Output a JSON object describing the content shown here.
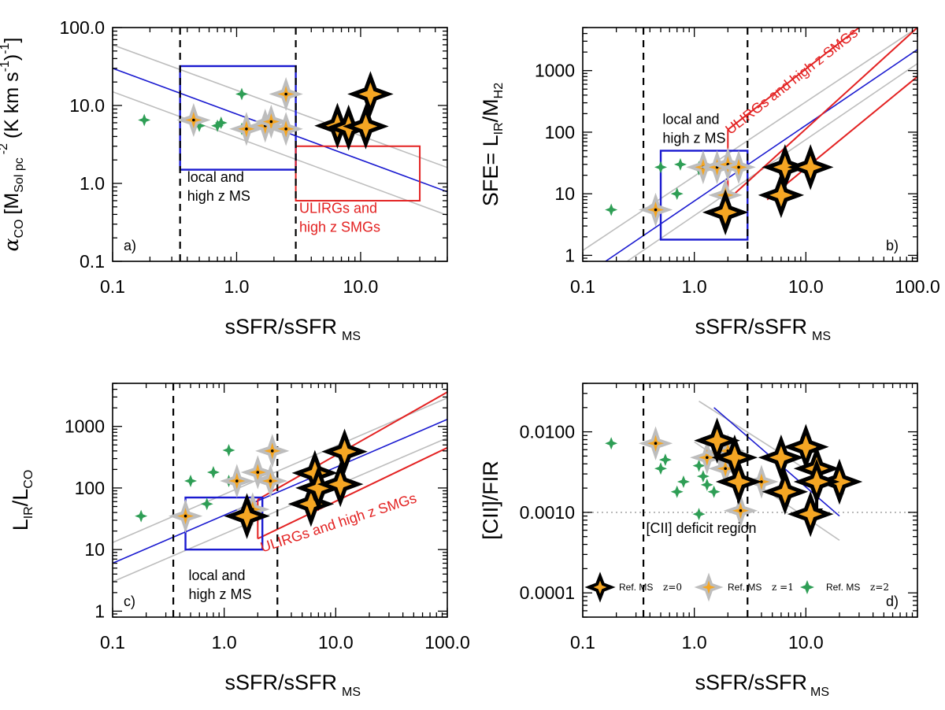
{
  "chart_data": [
    {
      "id": "a",
      "type": "scatter",
      "panel_label": "a)",
      "xscale": "log",
      "yscale": "log",
      "xlim": [
        0.1,
        50
      ],
      "ylim": [
        0.1,
        100
      ],
      "xlabel": "sSFR/sSFR",
      "xlabel_sub": "MS",
      "ylabel_main": "α",
      "ylabel_co": "CO",
      "ylabel_open": "[M",
      "ylabel_solpc": "Sol pc",
      "ylabel_exp": "-2",
      "ylabel_rest": "(K km s",
      "ylabel_exp2": "-1",
      "ylabel_close": ")",
      "ylabel_exp3": "-1",
      "ylabel_end": "]",
      "xticks": [
        {
          "v": 0.1,
          "label": "0.1"
        },
        {
          "v": 1,
          "label": "1.0"
        },
        {
          "v": 10,
          "label": "10.0"
        }
      ],
      "yticks": [
        {
          "v": 0.1,
          "label": "0.1"
        },
        {
          "v": 1,
          "label": "1.0"
        },
        {
          "v": 10,
          "label": "10.0"
        },
        {
          "v": 100,
          "label": "100.0"
        }
      ],
      "vlines": [
        0.35,
        3.0
      ],
      "fit": {
        "p1": [
          0.1,
          30
        ],
        "p2": [
          50,
          0.78
        ]
      },
      "bands": [
        {
          "p1": [
            0.1,
            60
          ],
          "p2": [
            50,
            1.6
          ]
        },
        {
          "p1": [
            0.1,
            15
          ],
          "p2": [
            50,
            0.39
          ]
        }
      ],
      "red_lines": [],
      "boxes": [
        {
          "color": "blue",
          "x": [
            0.35,
            3.0
          ],
          "y": [
            1.5,
            32
          ]
        },
        {
          "color": "red",
          "x": [
            3.0,
            30
          ],
          "y": [
            0.6,
            3.0
          ]
        }
      ],
      "labels": [
        {
          "lines": [
            "local and",
            "high  z MS"
          ],
          "color": "black",
          "anchor": [
            0.4,
            1.05
          ]
        },
        {
          "lines": [
            "ULIRGs and",
            "high z SMGs"
          ],
          "color": "red",
          "anchor": [
            3.2,
            0.42
          ]
        }
      ],
      "series": [
        {
          "name": "Ref. MS z=0",
          "points": [
            [
              6.5,
              5.5
            ],
            [
              8,
              5.2
            ],
            [
              11,
              5.4
            ],
            [
              12,
              14
            ]
          ]
        },
        {
          "name": "Ref. MS z=1",
          "points": [
            [
              0.45,
              6.5
            ],
            [
              1.2,
              5
            ],
            [
              1.7,
              5.5
            ],
            [
              1.9,
              6.2
            ],
            [
              2.5,
              5
            ],
            [
              2.5,
              14
            ]
          ]
        },
        {
          "name": "Ref. MS z=2",
          "points": [
            [
              0.18,
              6.5
            ],
            [
              0.5,
              5.5
            ],
            [
              0.7,
              5.5
            ],
            [
              0.75,
              6
            ],
            [
              1.1,
              14
            ],
            [
              1.1,
              5
            ]
          ]
        }
      ]
    },
    {
      "id": "b",
      "type": "scatter",
      "panel_label": "b)",
      "xscale": "log",
      "yscale": "log",
      "xlim": [
        0.1,
        100
      ],
      "ylim": [
        0.8,
        5000
      ],
      "xlabel": "sSFR/sSFR",
      "xlabel_sub": "MS",
      "ylabel_main": "SFE= L",
      "ylabel_ir": "IR",
      "ylabel_slash": "/M",
      "ylabel_h2": "H2",
      "xticks": [
        {
          "v": 0.1,
          "label": "0.1"
        },
        {
          "v": 1,
          "label": "1.0"
        },
        {
          "v": 10,
          "label": "10.0"
        },
        {
          "v": 100,
          "label": "100.0"
        }
      ],
      "yticks": [
        {
          "v": 1,
          "label": "1"
        },
        {
          "v": 10,
          "label": "10"
        },
        {
          "v": 100,
          "label": "100"
        },
        {
          "v": 1000,
          "label": "1000"
        }
      ],
      "vlines": [
        0.35,
        3.0
      ],
      "fit": {
        "p1": [
          0.16,
          0.8
        ],
        "p2": [
          100,
          2200
        ]
      },
      "bands": [
        {
          "p1": [
            0.1,
            1.2
          ],
          "p2": [
            100,
            5000
          ]
        },
        {
          "p1": [
            0.25,
            0.8
          ],
          "p2": [
            100,
            1300
          ]
        }
      ],
      "red_lines": [
        {
          "p1": [
            2.0,
            8
          ],
          "p2": [
            100,
            5000
          ]
        },
        {
          "p1": [
            2.0,
            8
          ],
          "p2": [
            2.0,
            110
          ]
        },
        {
          "p1": [
            2.0,
            110
          ],
          "p2": [
            30,
            5000
          ]
        },
        {
          "p1": [
            4.5,
            8
          ],
          "p2": [
            100,
            800
          ]
        }
      ],
      "boxes": [
        {
          "color": "blue",
          "x": [
            0.5,
            3.0
          ],
          "y": [
            1.8,
            50
          ]
        }
      ],
      "labels": [
        {
          "lines": [
            "local and",
            "high z MS"
          ],
          "color": "black",
          "anchor": [
            0.52,
            135
          ]
        },
        {
          "lines": [
            "ULIRGs and high z SMGs"
          ],
          "color": "red",
          "anchor": [
            2.1,
            90
          ],
          "rotate": -38
        }
      ],
      "series": [
        {
          "name": "Ref. MS z=0",
          "points": [
            [
              1.9,
              5
            ],
            [
              6,
              9.5
            ],
            [
              6.5,
              27
            ],
            [
              11,
              27
            ]
          ]
        },
        {
          "name": "Ref. MS z=1",
          "points": [
            [
              0.45,
              5.5
            ],
            [
              1.2,
              27
            ],
            [
              1.6,
              27
            ],
            [
              1.9,
              9.5
            ],
            [
              2.0,
              30
            ],
            [
              2.5,
              27
            ]
          ]
        },
        {
          "name": "Ref. MS z=2",
          "points": [
            [
              0.18,
              5.5
            ],
            [
              0.5,
              27
            ],
            [
              0.7,
              10
            ],
            [
              0.75,
              30
            ],
            [
              1.1,
              27
            ],
            [
              1.1,
              25
            ]
          ]
        }
      ]
    },
    {
      "id": "c",
      "type": "scatter",
      "panel_label": "c)",
      "xscale": "log",
      "yscale": "log",
      "xlim": [
        0.1,
        100
      ],
      "ylim": [
        0.8,
        5000
      ],
      "xlabel": "sSFR/sSFR",
      "xlabel_sub": "MS",
      "ylabel_main": "L",
      "ylabel_ir": "IR",
      "ylabel_slash": "/L",
      "ylabel_co": "CO",
      "xticks": [
        {
          "v": 0.1,
          "label": "0.1"
        },
        {
          "v": 1,
          "label": "1.0"
        },
        {
          "v": 10,
          "label": "10.0"
        },
        {
          "v": 100,
          "label": "100.0"
        }
      ],
      "yticks": [
        {
          "v": 1,
          "label": "1"
        },
        {
          "v": 10,
          "label": "10"
        },
        {
          "v": 100,
          "label": "100"
        },
        {
          "v": 1000,
          "label": "1000"
        }
      ],
      "vlines": [
        0.35,
        3.0
      ],
      "fit": {
        "p1": [
          0.1,
          6
        ],
        "p2": [
          100,
          1300
        ]
      },
      "bands": [
        {
          "p1": [
            0.1,
            13
          ],
          "p2": [
            100,
            2900
          ]
        },
        {
          "p1": [
            0.1,
            3
          ],
          "p2": [
            100,
            650
          ]
        }
      ],
      "red_lines": [
        {
          "p1": [
            2.0,
            65
          ],
          "p2": [
            100,
            3600
          ]
        },
        {
          "p1": [
            2.0,
            15
          ],
          "p2": [
            2.0,
            65
          ]
        },
        {
          "p1": [
            2.0,
            15
          ],
          "p2": [
            100,
            450
          ]
        }
      ],
      "boxes": [
        {
          "color": "blue",
          "x": [
            0.45,
            2.2
          ],
          "y": [
            10,
            70
          ]
        }
      ],
      "labels": [
        {
          "lines": [
            "local and",
            "high z MS"
          ],
          "color": "black",
          "anchor": [
            0.48,
            3.2
          ]
        },
        {
          "lines": [
            "ULIRGs and high z SMGs"
          ],
          "color": "red",
          "anchor": [
            2.2,
            9
          ],
          "rotate": -18
        }
      ],
      "series": [
        {
          "name": "Ref. MS z=0",
          "points": [
            [
              1.6,
              35
            ],
            [
              6,
              55
            ],
            [
              6.5,
              175
            ],
            [
              7,
              100
            ],
            [
              11,
              115
            ],
            [
              12,
              390
            ]
          ]
        },
        {
          "name": "Ref. MS z=1",
          "points": [
            [
              0.45,
              35
            ],
            [
              1.3,
              130
            ],
            [
              1.8,
              45
            ],
            [
              2.0,
              180
            ],
            [
              2.6,
              130
            ],
            [
              2.7,
              400
            ]
          ]
        },
        {
          "name": "Ref. MS z=2",
          "points": [
            [
              0.18,
              35
            ],
            [
              0.5,
              130
            ],
            [
              0.7,
              55
            ],
            [
              0.8,
              180
            ],
            [
              1.1,
              410
            ],
            [
              1.1,
              130
            ]
          ]
        }
      ]
    },
    {
      "id": "d",
      "type": "scatter",
      "panel_label": "d)",
      "xscale": "log",
      "yscale": "log",
      "xlim": [
        0.1,
        100
      ],
      "ylim": [
        5e-05,
        0.04
      ],
      "xlabel": "sSFR/sSFR",
      "xlabel_sub": "MS",
      "ylabel_main": "[CII]/FIR",
      "xticks": [
        {
          "v": 0.1,
          "label": "0.1"
        },
        {
          "v": 1,
          "label": "1.0"
        },
        {
          "v": 10,
          "label": "10.0"
        }
      ],
      "yticks": [
        {
          "v": 0.0001,
          "label": "0.0001"
        },
        {
          "v": 0.001,
          "label": "0.0010"
        },
        {
          "v": 0.01,
          "label": "0.0100"
        }
      ],
      "vlines": [
        0.35,
        3.0
      ],
      "fit": {
        "p1": [
          1.5,
          0.02
        ],
        "p2": [
          20,
          0.0009
        ]
      },
      "bands": [
        {
          "p1": [
            1.1,
            0.024
          ],
          "p2": [
            22,
            0.0017
          ]
        },
        {
          "p1": [
            1.0,
            0.0075
          ],
          "p2": [
            20,
            0.00045
          ]
        }
      ],
      "red_lines": [],
      "boxes": [],
      "deficit_line": 0.001,
      "deficit_label": "[CII] deficit region",
      "labels": [],
      "upper_limits": [
        [
          2.5,
          0.0024
        ],
        [
          12.5,
          0.0024
        ]
      ],
      "series": [
        {
          "name": "Ref. MS z=0",
          "points": [
            [
              1.6,
              0.0078
            ],
            [
              2.3,
              0.0048
            ],
            [
              6,
              0.0048
            ],
            [
              6.5,
              0.0018
            ],
            [
              10,
              0.0065
            ],
            [
              11,
              0.00095
            ],
            [
              12.5,
              0.0035
            ],
            [
              20,
              0.0024
            ],
            [
              2.5,
              0.0024
            ],
            [
              12.5,
              0.0024
            ]
          ]
        },
        {
          "name": "Ref. MS z=1",
          "points": [
            [
              0.45,
              0.0072
            ],
            [
              1.3,
              0.0048
            ],
            [
              1.7,
              0.0055
            ],
            [
              1.9,
              0.0035
            ],
            [
              2.0,
              0.0058
            ],
            [
              2.4,
              0.0024
            ],
            [
              2.6,
              0.00105
            ],
            [
              4,
              0.0024
            ]
          ]
        },
        {
          "name": "Ref. MS z=2",
          "points": [
            [
              0.18,
              0.0072
            ],
            [
              0.5,
              0.0035
            ],
            [
              0.55,
              0.0045
            ],
            [
              0.7,
              0.0018
            ],
            [
              0.8,
              0.0024
            ],
            [
              1.1,
              0.0038
            ],
            [
              1.1,
              0.00095
            ],
            [
              1.2,
              0.0028
            ],
            [
              1.3,
              0.0022
            ],
            [
              1.5,
              0.0018
            ]
          ]
        }
      ],
      "legend": [
        {
          "series": "Ref. MS z=0",
          "label": "Ref. MS",
          "zlabel": "z=0"
        },
        {
          "series": "Ref. MS z=1",
          "label": "Ref. MS",
          "zlabel": "z =1"
        },
        {
          "series": "Ref. MS z=2",
          "label": "Ref. MS",
          "zlabel": "z=2"
        }
      ]
    }
  ],
  "colors": {
    "fit": "#1a1ad0",
    "band": "#bdbdbd",
    "red": "#e32222",
    "star_fill": "#f5a623",
    "star_z0_outline": "#000000",
    "star_z1_outline": "#bdbdbd",
    "star_z2_fill": "#2e9e55"
  }
}
